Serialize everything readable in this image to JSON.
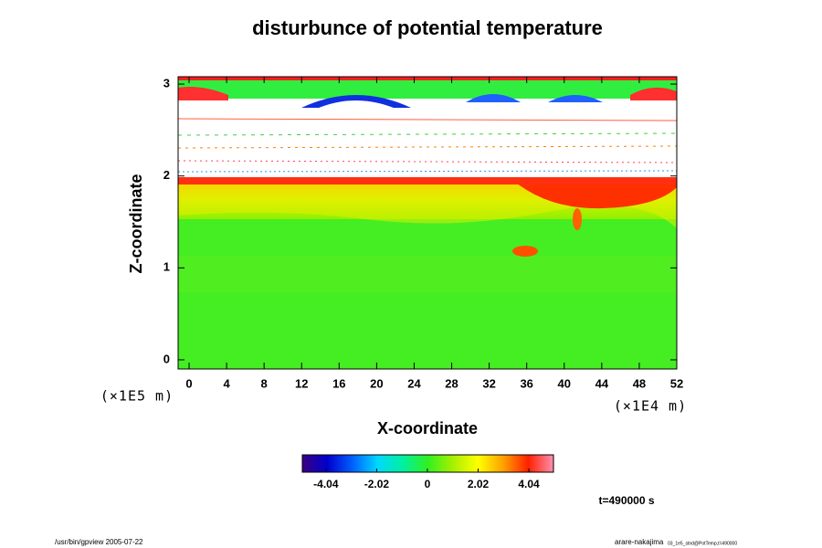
{
  "chart_data": {
    "type": "heatmap",
    "title": "disturbunce of potential temperature",
    "xlabel": "X-coordinate",
    "ylabel": "Z-coordinate",
    "xunit": "(×1E4 m)",
    "yunit": "(×1E5 m)",
    "xlim": [
      -1.17,
      52
    ],
    "ylim": [
      -0.1,
      3.08
    ],
    "xticks": [
      0,
      4,
      8,
      12,
      16,
      20,
      24,
      28,
      32,
      36,
      40,
      44,
      48,
      52
    ],
    "yticks": [
      0,
      1,
      2,
      3
    ],
    "colorlim": [
      -4.98,
      5.02
    ],
    "colorticks": [
      -4.04,
      -2.02,
      0,
      2.02,
      4.04
    ],
    "colormap": [
      "#3a0080",
      "#0000cc",
      "#0060ff",
      "#00d8ff",
      "#00f0a0",
      "#30f020",
      "#a8f000",
      "#ffff00",
      "#ffa000",
      "#ff2000",
      "#ff90b0"
    ],
    "time_label": "t=490000 s",
    "footer_left": "/usr/bin/gpview 2005-07-22",
    "footer_right": "arare-nakajima",
    "footer_right_small": "03_1e5_stnd@PotTemp,t=490000"
  }
}
